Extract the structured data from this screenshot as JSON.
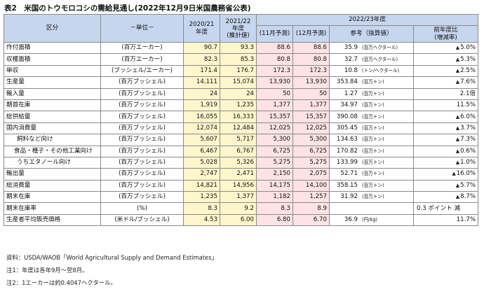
{
  "title": "表2　米国のトウモロコシの需給見通し(2022年12月9日米国農務省公表)",
  "headers": {
    "item": "区分",
    "unit": "－単位－",
    "y2021": "2020/21\n年度",
    "y2022_line1": "2021/22",
    "y2022_line2": "年度",
    "y2022_line3": "(推計値)",
    "group_2223": "2022/23年度",
    "nov": "(11月予測)",
    "dec": "(12月予測)",
    "conv": "参考（換算値）",
    "yoy_line1": "前年度比",
    "yoy_line2": "(増減率)"
  },
  "rows": [
    {
      "item": "作付面積",
      "unit": "(百万エーカー)",
      "y2021": "90.7",
      "y2022": "93.3",
      "nov": "88.6",
      "dec": "88.6",
      "conv": "35.9",
      "conv_unit": "(百万ヘクタール)",
      "yoy": "5.0%",
      "tri": "▲"
    },
    {
      "item": "収穫面積",
      "unit": "(百万エーカー)",
      "y2021": "82.3",
      "y2022": "85.3",
      "nov": "80.8",
      "dec": "80.8",
      "conv": "32.7",
      "conv_unit": "(百万ヘクタール)",
      "yoy": "5.3%",
      "tri": "▲"
    },
    {
      "item": "単収",
      "unit": "(ブッシェル/エーカー)",
      "y2021": "171.4",
      "y2022": "176.7",
      "nov": "172.3",
      "dec": "172.3",
      "conv": "10.8",
      "conv_unit": "(トン/ヘクタール)",
      "yoy": "2.5%",
      "tri": "▲"
    },
    {
      "item": "生産量",
      "unit": "(百万ブッシェル)",
      "y2021": "14,111",
      "y2022": "15,074",
      "nov": "13,930",
      "dec": "13,930",
      "conv": "353.84",
      "conv_unit": "(百万トン)",
      "yoy": "7.6%",
      "tri": "▲"
    },
    {
      "item": "輸入量",
      "unit": "(百万ブッシェル)",
      "y2021": "24",
      "y2022": "24",
      "nov": "50",
      "dec": "50",
      "conv": "1.27",
      "conv_unit": "(百万トン)",
      "yoy": "2.1倍",
      "tri": ""
    },
    {
      "item": "期首在庫",
      "unit": "(百万ブッシェル)",
      "y2021": "1,919",
      "y2022": "1,235",
      "nov": "1,377",
      "dec": "1,377",
      "conv": "34.97",
      "conv_unit": "(百万トン)",
      "yoy": "11.5%",
      "tri": ""
    },
    {
      "item": "総供給量",
      "unit": "(百万ブッシェル)",
      "y2021": "16,055",
      "y2022": "16,333",
      "nov": "15,357",
      "dec": "15,357",
      "conv": "390.08",
      "conv_unit": "(百万トン)",
      "yoy": "6.0%",
      "tri": "▲"
    },
    {
      "item": "国内消費量",
      "unit": "(百万ブッシェル)",
      "y2021": "12,074",
      "y2022": "12,484",
      "nov": "12,025",
      "dec": "12,025",
      "conv": "305.45",
      "conv_unit": "(百万トン)",
      "yoy": "3.7%",
      "tri": "▲"
    },
    {
      "item": "飼料など向け",
      "unit": "(百万ブッシェル)",
      "y2021": "5,607",
      "y2022": "5,717",
      "nov": "5,300",
      "dec": "5,300",
      "conv": "134.63",
      "conv_unit": "(百万トン)",
      "yoy": "7.3%",
      "tri": "▲"
    },
    {
      "item": "食品・種子・その他工業向け",
      "unit": "(百万ブッシェル)",
      "y2021": "6,467",
      "y2022": "6,767",
      "nov": "6,725",
      "dec": "6,725",
      "conv": "170.82",
      "conv_unit": "(百万トン)",
      "yoy": "0.6%",
      "tri": "▲"
    },
    {
      "item": "うちエタノール向け",
      "unit": "(百万ブッシェル)",
      "y2021": "5,028",
      "y2022": "5,326",
      "nov": "5,275",
      "dec": "5,275",
      "conv": "133.99",
      "conv_unit": "(百万トン)",
      "yoy": "1.0%",
      "tri": "▲"
    },
    {
      "item": "輸出量",
      "unit": "(百万ブッシェル)",
      "y2021": "2,747",
      "y2022": "2,471",
      "nov": "2,150",
      "dec": "2,075",
      "conv": "52.71",
      "conv_unit": "(百万トン)",
      "yoy": "16.0%",
      "tri": "▲"
    },
    {
      "item": "総消費量",
      "unit": "(百万ブッシェル)",
      "y2021": "14,821",
      "y2022": "14,956",
      "nov": "14,175",
      "dec": "14,100",
      "conv": "358.15",
      "conv_unit": "(百万トン)",
      "yoy": "5.7%",
      "tri": "▲"
    },
    {
      "item": "期末在庫",
      "unit": "(百万ブッシェル)",
      "y2021": "1,235",
      "y2022": "1,377",
      "nov": "1,182",
      "dec": "1,257",
      "conv": "31.92",
      "conv_unit": "(百万トン)",
      "yoy": "8.7%",
      "tri": "▲"
    },
    {
      "item": "期末在庫率",
      "unit": "(%)",
      "y2021": "8.3",
      "y2022": "9.2",
      "nov": "8.3",
      "dec": "8.9",
      "conv": "",
      "conv_unit": "",
      "yoy": "0.3 ポイント 減",
      "tri": ""
    },
    {
      "item": "生産者平均販売価格",
      "unit": "(米ドル/ブッシェル)",
      "y2021": "4.53",
      "y2022": "6.00",
      "nov": "6.80",
      "dec": "6.70",
      "conv": "36.9",
      "conv_unit": "(円/kg)",
      "yoy": "11.7%",
      "tri": ""
    }
  ],
  "notes": {
    "source": "資料：USDA/WAOB「World Agricultural Supply and Demand Estimates」",
    "note1": "注1：年度は各年9月～翌8月。",
    "note2": "注2：1エーカーは約0.4047ヘクタール。"
  }
}
